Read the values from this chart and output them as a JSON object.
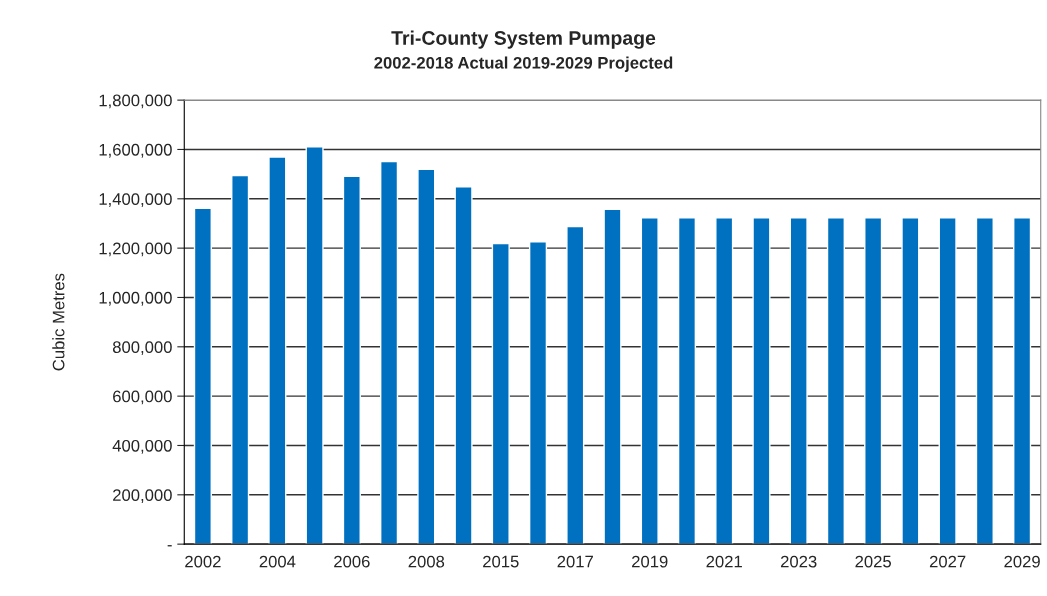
{
  "chart_data": {
    "type": "bar",
    "title": "Tri-County System Pumpage",
    "subtitle": "2002-2018 Actual 2019-2029 Projected",
    "ylabel": "Cubic Metres",
    "categories": [
      "2002",
      null,
      "2004",
      null,
      "2006",
      null,
      "2008",
      null,
      "2015",
      null,
      "2017",
      null,
      "2019",
      null,
      "2021",
      null,
      "2023",
      null,
      "2025",
      null,
      "2027",
      null,
      "2029"
    ],
    "values": [
      1361000,
      1494000,
      1569000,
      1611000,
      1491000,
      1551000,
      1520000,
      1449000,
      1219000,
      1226000,
      1287000,
      1357000,
      1323000,
      1323000,
      1323000,
      1323000,
      1323000,
      1323000,
      1323000,
      1323000,
      1323000,
      1323000,
      1323000
    ],
    "color": "#0070c0",
    "ylim": [
      0,
      1800000
    ],
    "yticks": [
      {
        "value": 0,
        "label": "-"
      },
      {
        "value": 200000,
        "label": "200,000"
      },
      {
        "value": 400000,
        "label": "400,000"
      },
      {
        "value": 600000,
        "label": "600,000"
      },
      {
        "value": 800000,
        "label": "800,000"
      },
      {
        "value": 1000000,
        "label": "1,000,000"
      },
      {
        "value": 1200000,
        "label": "1,200,000"
      },
      {
        "value": 1400000,
        "label": "1,400,000"
      },
      {
        "value": 1600000,
        "label": "1,600,000"
      },
      {
        "value": 1800000,
        "label": "1,800,000"
      }
    ],
    "grid": "y"
  }
}
